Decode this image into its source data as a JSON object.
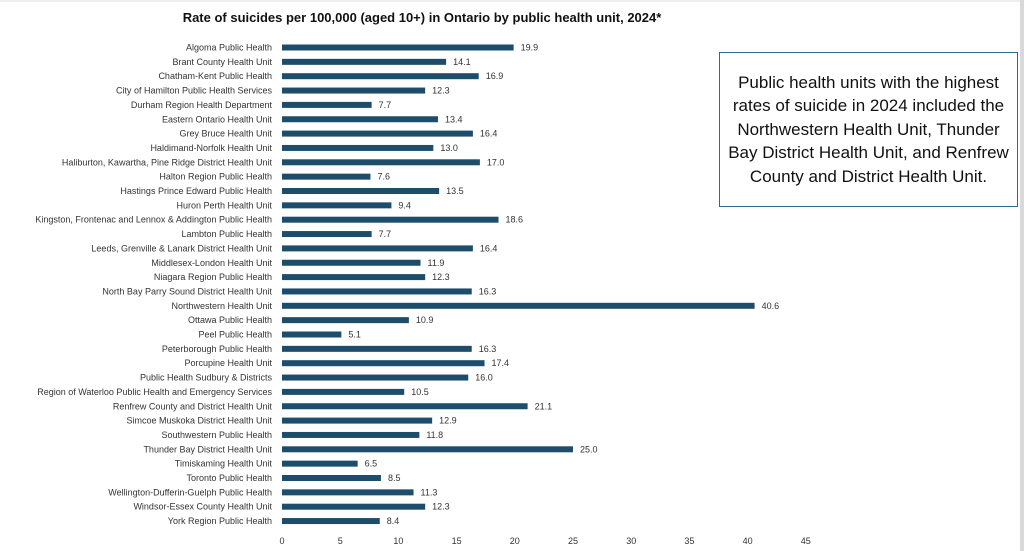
{
  "chart_data": {
    "type": "bar",
    "orientation": "horizontal",
    "title": "Rate of suicides per 100,000 (aged 10+) in Ontario by public health unit, 2024*",
    "xlabel": "",
    "ylabel": "",
    "xlim": [
      0,
      45
    ],
    "xticks": [
      0,
      5,
      10,
      15,
      20,
      25,
      30,
      35,
      40,
      45
    ],
    "grid": false,
    "legend": "none",
    "bar_color": "#1e4d6b",
    "categories": [
      "Algoma Public Health",
      "Brant County Health Unit",
      "Chatham-Kent Public Health",
      "City of Hamilton Public Health Services",
      "Durham Region Health Department",
      "Eastern Ontario Health Unit",
      "Grey Bruce Health Unit",
      "Haldimand-Norfolk Health Unit",
      "Haliburton, Kawartha, Pine Ridge District Health Unit",
      "Halton Region Public Health",
      "Hastings Prince Edward Public Health",
      "Huron Perth Health Unit",
      "Kingston, Frontenac and Lennox & Addington Public Health",
      "Lambton Public Health",
      "Leeds, Grenville & Lanark District Health Unit",
      "Middlesex-London Health Unit",
      "Niagara Region Public Health",
      "North Bay Parry Sound District Health Unit",
      "Northwestern Health Unit",
      "Ottawa Public Health",
      "Peel Public Health",
      "Peterborough Public Health",
      "Porcupine Health Unit",
      "Public Health Sudbury & Districts",
      "Region of Waterloo Public Health and Emergency Services",
      "Renfrew County and District Health Unit",
      "Simcoe Muskoka District Health Unit",
      "Southwestern Public Health",
      "Thunder Bay District Health Unit",
      "Timiskaming Health Unit",
      "Toronto Public Health",
      "Wellington-Dufferin-Guelph Public Health",
      "Windsor-Essex County Health Unit",
      "York Region Public Health"
    ],
    "values": [
      19.9,
      14.1,
      16.9,
      12.3,
      7.7,
      13.4,
      16.4,
      13.0,
      17.0,
      7.6,
      13.5,
      9.4,
      18.6,
      7.7,
      16.4,
      11.9,
      12.3,
      16.3,
      40.6,
      10.9,
      5.1,
      16.3,
      17.4,
      16.0,
      10.5,
      21.1,
      12.9,
      11.8,
      25.0,
      6.5,
      8.5,
      11.3,
      12.3,
      8.4
    ],
    "value_labels": [
      "19.9",
      "14.1",
      "16.9",
      "12.3",
      "7.7",
      "13.4",
      "16.4",
      "13.0",
      "17.0",
      "7.6",
      "13.5",
      "9.4",
      "18.6",
      "7.7",
      "16.4",
      "11.9",
      "12.3",
      "16.3",
      "40.6",
      "10.9",
      "5.1",
      "16.3",
      "17.4",
      "16.0",
      "10.5",
      "21.1",
      "12.9",
      "11.8",
      "25.0",
      "6.5",
      "8.5",
      "11.3",
      "12.3",
      "8.4"
    ]
  },
  "callout": {
    "text": "Public health units with the highest rates of suicide in 2024 included the Northwestern Health Unit, Thunder Bay District Health Unit, and Renfrew County and District Health Unit."
  }
}
